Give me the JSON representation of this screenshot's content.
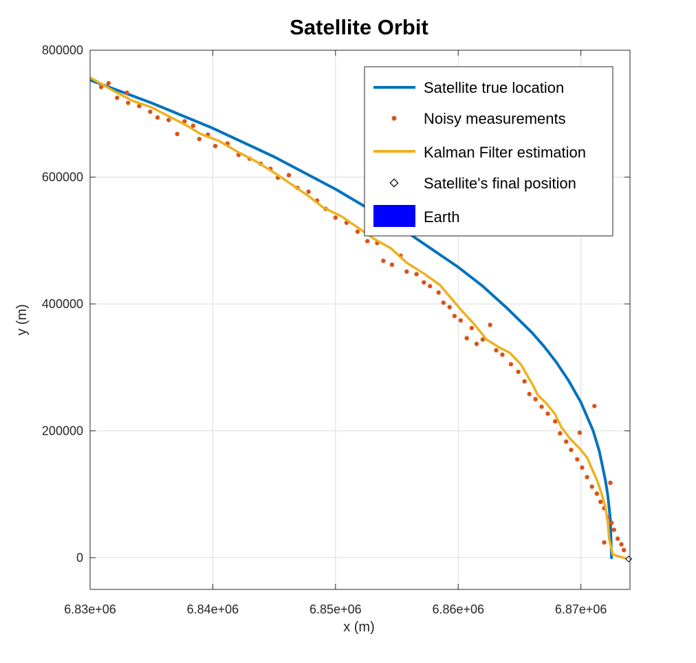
{
  "chart_data": {
    "type": "line",
    "title": "Satellite Orbit",
    "xlabel": "x (m)",
    "ylabel": "y (m)",
    "xlim": [
      6830000,
      6874000
    ],
    "ylim": [
      -50000,
      800000
    ],
    "grid": true,
    "legend_position": "top-right",
    "x_ticks": [
      6830000,
      6840000,
      6850000,
      6860000,
      6870000
    ],
    "x_tick_labels": [
      "6.83e+06",
      "6.84e+06",
      "6.85e+06",
      "6.86e+06",
      "6.87e+06"
    ],
    "y_ticks": [
      0,
      200000,
      400000,
      600000,
      800000
    ],
    "y_tick_labels": [
      "0",
      "200000",
      "400000",
      "600000",
      "800000"
    ],
    "series": [
      {
        "name": "Satellite true location",
        "kind": "line",
        "color": "#0072BD",
        "points": [
          [
            6830000,
            753000
          ],
          [
            6835000,
            717000
          ],
          [
            6840000,
            677000
          ],
          [
            6845000,
            632000
          ],
          [
            6850000,
            581000
          ],
          [
            6855000,
            524000
          ],
          [
            6860000,
            458000
          ],
          [
            6862000,
            428000
          ],
          [
            6864000,
            393000
          ],
          [
            6866000,
            355000
          ],
          [
            6867000,
            333000
          ],
          [
            6868000,
            308000
          ],
          [
            6869000,
            279000
          ],
          [
            6870000,
            245000
          ],
          [
            6871000,
            200000
          ],
          [
            6871500,
            168000
          ],
          [
            6872000,
            122000
          ],
          [
            6872200,
            97000
          ],
          [
            6872400,
            60000
          ],
          [
            6872500,
            0
          ]
        ]
      },
      {
        "name": "Noisy measurements",
        "kind": "scatter",
        "color": "#D95319",
        "points": [
          [
            6830900,
            742000
          ],
          [
            6831500,
            748000
          ],
          [
            6832200,
            725000
          ],
          [
            6833000,
            733000
          ],
          [
            6833100,
            717000
          ],
          [
            6834000,
            712000
          ],
          [
            6834900,
            703000
          ],
          [
            6835500,
            694000
          ],
          [
            6836400,
            690000
          ],
          [
            6837100,
            668000
          ],
          [
            6837700,
            688000
          ],
          [
            6838400,
            681000
          ],
          [
            6838900,
            660000
          ],
          [
            6839600,
            667000
          ],
          [
            6840200,
            649000
          ],
          [
            6841200,
            653000
          ],
          [
            6842100,
            635000
          ],
          [
            6843000,
            629000
          ],
          [
            6843900,
            621000
          ],
          [
            6844700,
            613000
          ],
          [
            6845300,
            599000
          ],
          [
            6846200,
            603000
          ],
          [
            6846900,
            583000
          ],
          [
            6847800,
            577000
          ],
          [
            6848500,
            563000
          ],
          [
            6849200,
            550000
          ],
          [
            6850000,
            536000
          ],
          [
            6850900,
            528000
          ],
          [
            6851800,
            514000
          ],
          [
            6852600,
            499000
          ],
          [
            6853400,
            496000
          ],
          [
            6853900,
            468000
          ],
          [
            6854600,
            462000
          ],
          [
            6855300,
            476000
          ],
          [
            6855800,
            451000
          ],
          [
            6856600,
            447000
          ],
          [
            6857200,
            434000
          ],
          [
            6857700,
            428000
          ],
          [
            6858400,
            418000
          ],
          [
            6858800,
            402000
          ],
          [
            6859300,
            395000
          ],
          [
            6859700,
            381000
          ],
          [
            6860200,
            374000
          ],
          [
            6860700,
            346000
          ],
          [
            6861100,
            362000
          ],
          [
            6861500,
            337000
          ],
          [
            6862000,
            344000
          ],
          [
            6862600,
            367000
          ],
          [
            6863100,
            327000
          ],
          [
            6863600,
            320000
          ],
          [
            6864300,
            305000
          ],
          [
            6864900,
            293000
          ],
          [
            6865400,
            278000
          ],
          [
            6865800,
            258000
          ],
          [
            6866300,
            250000
          ],
          [
            6866800,
            238000
          ],
          [
            6867300,
            227000
          ],
          [
            6867900,
            215000
          ],
          [
            6868300,
            196000
          ],
          [
            6868800,
            183000
          ],
          [
            6869200,
            170000
          ],
          [
            6869700,
            155000
          ],
          [
            6870100,
            142000
          ],
          [
            6870500,
            127000
          ],
          [
            6870900,
            112000
          ],
          [
            6871300,
            101000
          ],
          [
            6871600,
            88000
          ],
          [
            6871900,
            78000
          ],
          [
            6872200,
            64000
          ],
          [
            6872500,
            55000
          ],
          [
            6872700,
            44000
          ],
          [
            6873000,
            30000
          ],
          [
            6873300,
            21000
          ],
          [
            6873500,
            12000
          ],
          [
            6871900,
            24000
          ],
          [
            6872400,
            118000
          ],
          [
            6871100,
            239000
          ],
          [
            6869900,
            197000
          ]
        ]
      },
      {
        "name": "Kalman Filter estimation",
        "kind": "line",
        "color": "#EDB120",
        "points": [
          [
            6830000,
            757000
          ],
          [
            6832000,
            735000
          ],
          [
            6833500,
            720000
          ],
          [
            6835000,
            710000
          ],
          [
            6836500,
            695000
          ],
          [
            6838000,
            680000
          ],
          [
            6839000,
            668000
          ],
          [
            6840500,
            657000
          ],
          [
            6842000,
            640000
          ],
          [
            6843500,
            625000
          ],
          [
            6845000,
            607000
          ],
          [
            6846300,
            590000
          ],
          [
            6847800,
            570000
          ],
          [
            6849000,
            552000
          ],
          [
            6850500,
            538000
          ],
          [
            6851700,
            522000
          ],
          [
            6853200,
            502000
          ],
          [
            6854500,
            488000
          ],
          [
            6855800,
            465000
          ],
          [
            6857200,
            448000
          ],
          [
            6858500,
            430000
          ],
          [
            6859600,
            405000
          ],
          [
            6860500,
            385000
          ],
          [
            6861400,
            366000
          ],
          [
            6862300,
            344000
          ],
          [
            6863300,
            332000
          ],
          [
            6864200,
            323000
          ],
          [
            6865100,
            305000
          ],
          [
            6866000,
            275000
          ],
          [
            6866500,
            256000
          ],
          [
            6867200,
            243000
          ],
          [
            6867900,
            226000
          ],
          [
            6868400,
            206000
          ],
          [
            6869100,
            188000
          ],
          [
            6869900,
            172000
          ],
          [
            6870500,
            158000
          ],
          [
            6870900,
            140000
          ],
          [
            6871300,
            123000
          ],
          [
            6871700,
            100000
          ],
          [
            6872000,
            80000
          ],
          [
            6872200,
            55000
          ],
          [
            6872300,
            30000
          ],
          [
            6872600,
            5000
          ],
          [
            6873800,
            -2000
          ]
        ]
      },
      {
        "name": "Satellite's final position",
        "kind": "marker",
        "color": "#000000",
        "points": [
          [
            6873900,
            -2000
          ]
        ]
      },
      {
        "name": "Earth",
        "kind": "patch",
        "color": "#0000FF",
        "points": []
      }
    ]
  }
}
